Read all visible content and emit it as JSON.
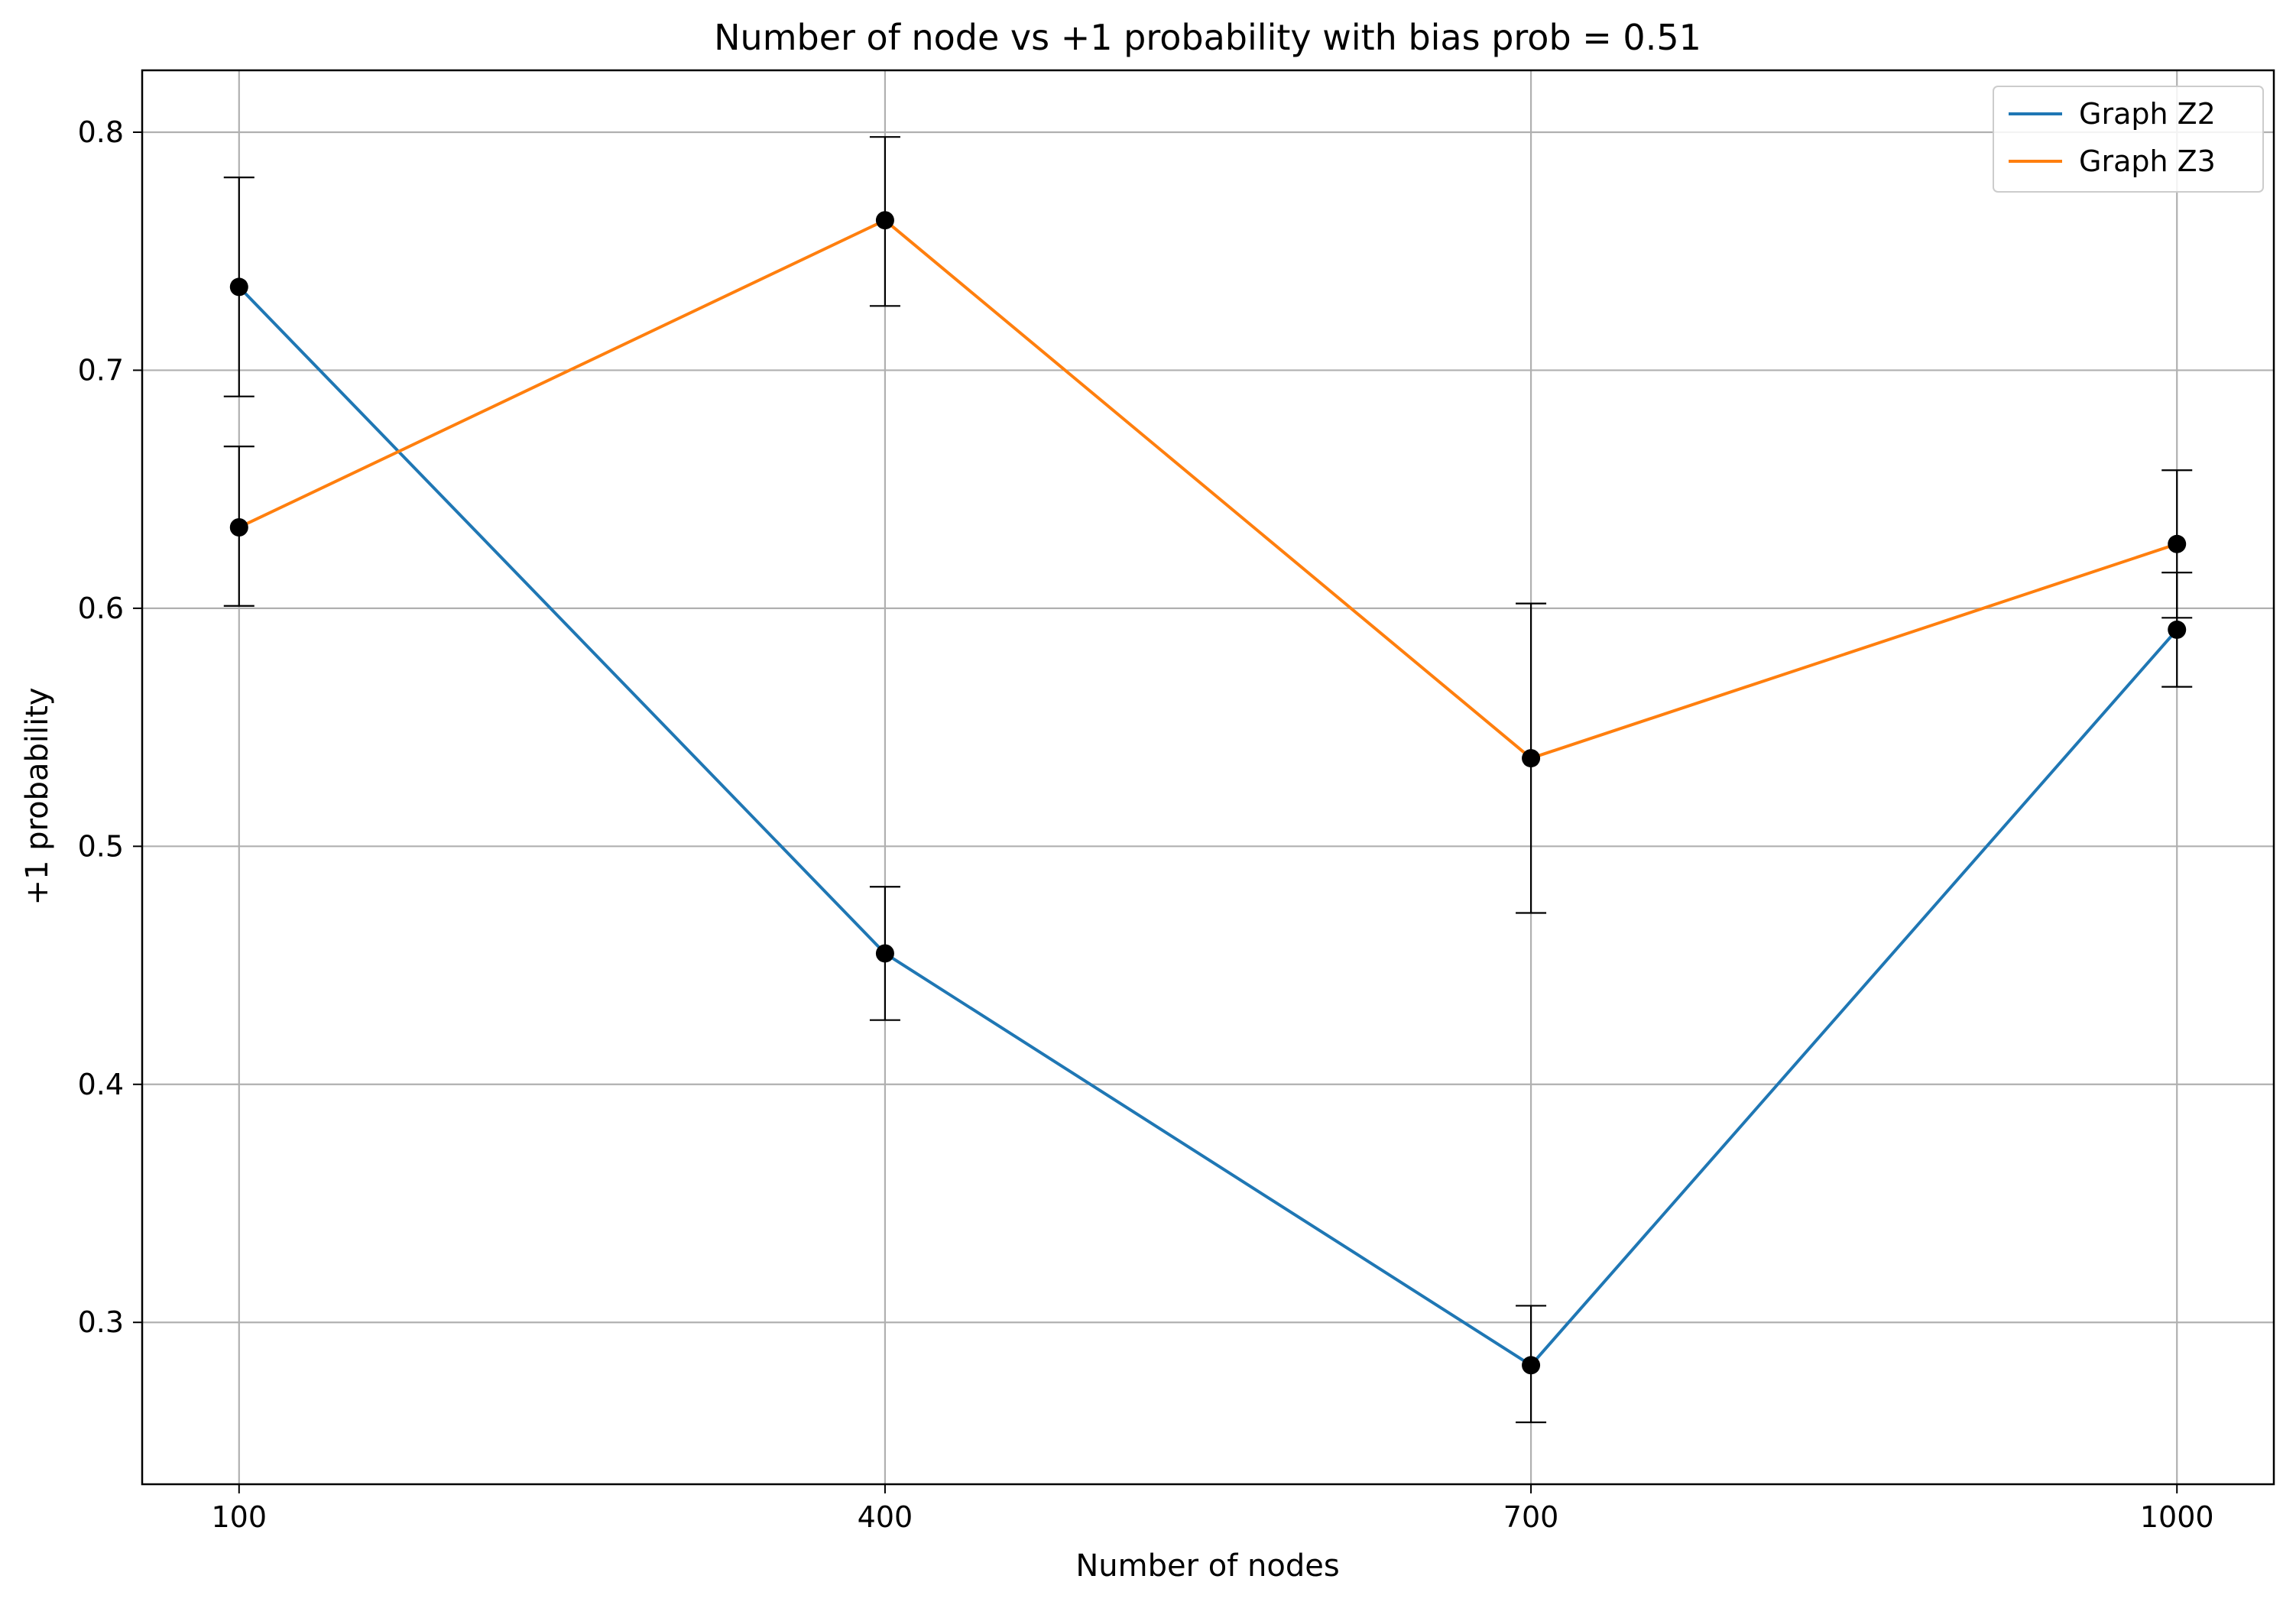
{
  "chart_data": {
    "type": "line",
    "title": "Number of node vs +1 probability with bias prob = 0.51",
    "xlabel": "Number of nodes",
    "ylabel": "+1 probability",
    "x": [
      100,
      400,
      700,
      1000
    ],
    "x_tick_labels": [
      "100",
      "400",
      "700",
      "1000"
    ],
    "xlim": [
      55,
      1045
    ],
    "ylim": [
      0.232,
      0.826
    ],
    "y_ticks": [
      0.3,
      0.4,
      0.5,
      0.6,
      0.7,
      0.8
    ],
    "y_tick_labels": [
      "0.3",
      "0.4",
      "0.5",
      "0.6",
      "0.7",
      "0.8"
    ],
    "grid": true,
    "legend_position": "top-right",
    "series": [
      {
        "name": "Graph Z2",
        "color": "#1f77b4",
        "values": [
          0.735,
          0.455,
          0.282,
          0.591
        ],
        "error_low": [
          0.689,
          0.427,
          0.258,
          0.567
        ],
        "error_high": [
          0.781,
          0.483,
          0.307,
          0.615
        ]
      },
      {
        "name": "Graph Z3",
        "color": "#ff7f0e",
        "values": [
          0.634,
          0.763,
          0.537,
          0.627
        ],
        "error_low": [
          0.601,
          0.727,
          0.472,
          0.596
        ],
        "error_high": [
          0.668,
          0.798,
          0.602,
          0.658
        ]
      }
    ],
    "marker_color": "#000000",
    "error_bar_color": "#000000"
  }
}
